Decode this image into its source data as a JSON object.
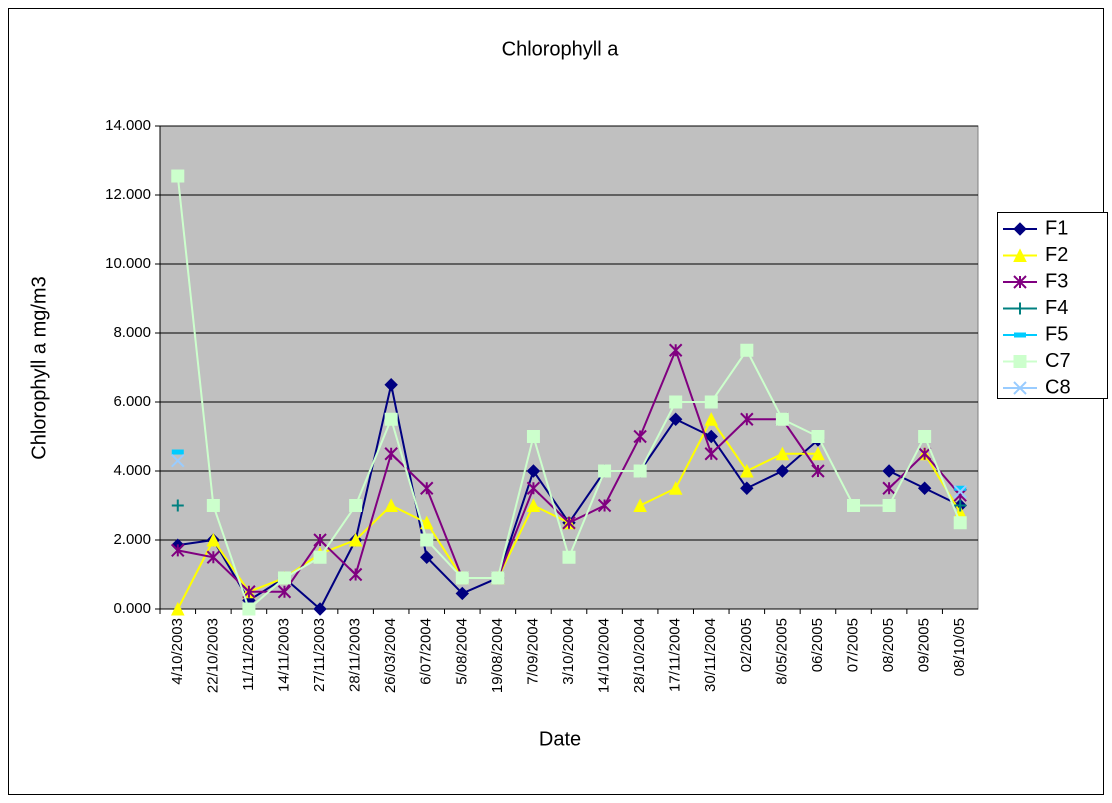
{
  "chart_data": {
    "type": "line",
    "title": "Chlorophyll a",
    "x_label": "Date",
    "y_label": "Chlorophyll a mg/m3",
    "categories": [
      "4/10/2003",
      "22/10/2003",
      "11/11/2003",
      "14/11/2003",
      "27/11/2003",
      "28/11/2003",
      "26/03/2004",
      "6/07/2004",
      "5/08/2004",
      "19/08/2004",
      "7/09/2004",
      "3/10/2004",
      "14/10/2004",
      "28/10/2004",
      "17/11/2004",
      "30/11/2004",
      "02/2005",
      "8/05/2005",
      "06/2005",
      "07/2005",
      "08/2005",
      "09/2005",
      "08/10/05"
    ],
    "series": [
      {
        "name": "F1",
        "color": "#000080",
        "marker": "diamond",
        "values": [
          1.85,
          2.0,
          0.25,
          0.9,
          0.0,
          2.0,
          6.5,
          1.5,
          0.45,
          0.9,
          4.0,
          2.5,
          4.0,
          4.0,
          5.5,
          5.0,
          3.5,
          4.0,
          4.9,
          null,
          4.0,
          3.5,
          3.0
        ]
      },
      {
        "name": "F2",
        "color": "#ffff00",
        "marker": "triangle",
        "values": [
          0.0,
          2.0,
          0.5,
          0.9,
          1.6,
          2.0,
          3.0,
          2.5,
          0.9,
          0.9,
          3.0,
          2.5,
          null,
          3.0,
          3.5,
          5.5,
          4.0,
          4.5,
          4.5,
          null,
          null,
          4.5,
          2.8
        ]
      },
      {
        "name": "F3",
        "color": "#800080",
        "marker": "star",
        "values": [
          1.7,
          1.5,
          0.5,
          0.5,
          2.0,
          1.0,
          4.5,
          3.5,
          0.9,
          0.9,
          3.5,
          2.5,
          3.0,
          5.0,
          7.5,
          4.5,
          5.5,
          5.5,
          4.0,
          null,
          3.5,
          4.5,
          3.3
        ]
      },
      {
        "name": "F4",
        "color": "#008080",
        "marker": "plus",
        "values": [
          3.0,
          null,
          null,
          null,
          null,
          null,
          null,
          null,
          null,
          null,
          null,
          null,
          null,
          null,
          null,
          null,
          null,
          null,
          null,
          null,
          null,
          null,
          3.0
        ]
      },
      {
        "name": "F5",
        "color": "#00ccff",
        "marker": "dash",
        "values": [
          4.55,
          null,
          null,
          null,
          null,
          null,
          null,
          null,
          null,
          null,
          null,
          null,
          null,
          null,
          null,
          null,
          null,
          null,
          null,
          null,
          null,
          null,
          3.5
        ]
      },
      {
        "name": "C7",
        "color": "#ccffcc",
        "marker": "square",
        "values": [
          12.55,
          3.0,
          0.0,
          0.9,
          1.5,
          3.0,
          5.5,
          2.0,
          0.9,
          0.9,
          5.0,
          1.5,
          4.0,
          4.0,
          6.0,
          6.0,
          7.5,
          5.5,
          5.0,
          3.0,
          3.0,
          5.0,
          2.5
        ]
      },
      {
        "name": "C8",
        "color": "#99ccff",
        "marker": "x",
        "values": [
          4.3,
          null,
          null,
          null,
          null,
          null,
          null,
          null,
          null,
          null,
          null,
          null,
          null,
          null,
          null,
          null,
          null,
          null,
          null,
          null,
          null,
          null,
          3.4
        ]
      }
    ],
    "ylim": [
      0,
      14
    ],
    "yticks": [
      {
        "value": 0,
        "label": "0.000"
      },
      {
        "value": 2,
        "label": "2.000"
      },
      {
        "value": 4,
        "label": "4.000"
      },
      {
        "value": 6,
        "label": "6.000"
      },
      {
        "value": 8,
        "label": "8.000"
      },
      {
        "value": 10,
        "label": "10.000"
      },
      {
        "value": 12,
        "label": "12.000"
      },
      {
        "value": 14,
        "label": "14.000"
      }
    ],
    "grid": true,
    "legend": "right"
  }
}
